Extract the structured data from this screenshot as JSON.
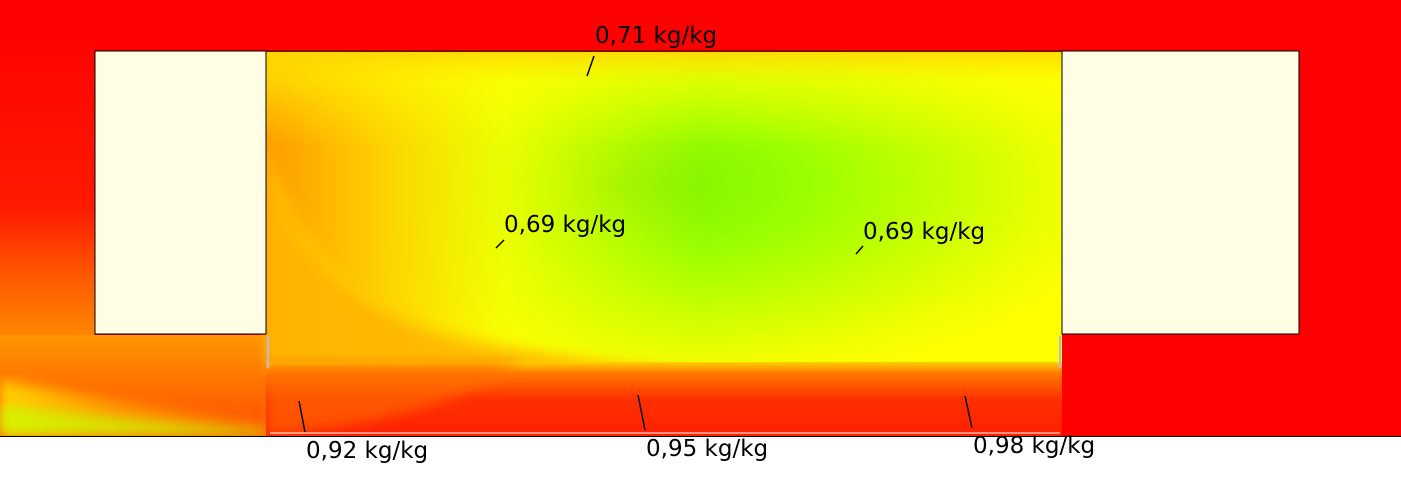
{
  "colors": {
    "outer_region": "#ff0000",
    "block_fill": "#fffde3",
    "block_stroke": "#000000",
    "leader_line": "#000000",
    "floor_line": "#000000",
    "background": "#ffffff",
    "contour_scale": [
      "#ff0000",
      "#ff4a00",
      "#ff8a00",
      "#ffc000",
      "#ffff00",
      "#ccff00",
      "#99ff00",
      "#7cf400"
    ]
  },
  "annotations": [
    {
      "id": "top",
      "text": "0,71 kg/kg"
    },
    {
      "id": "mid-left",
      "text": "0,69 kg/kg"
    },
    {
      "id": "mid-right",
      "text": "0,69 kg/kg"
    },
    {
      "id": "bottom-left",
      "text": "0,92 kg/kg"
    },
    {
      "id": "bottom-center",
      "text": "0,95 kg/kg"
    },
    {
      "id": "bottom-right",
      "text": "0,98 kg/kg"
    }
  ]
}
